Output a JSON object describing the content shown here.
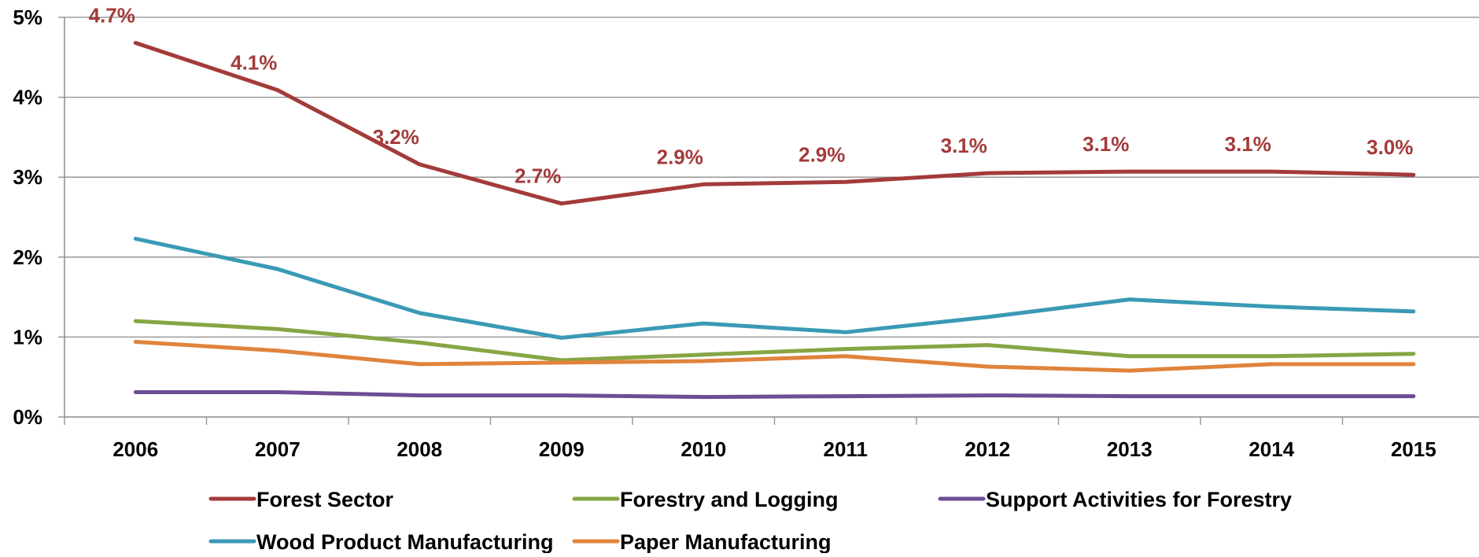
{
  "chart_data": {
    "type": "line",
    "title": "",
    "xlabel": "",
    "ylabel": "",
    "categories": [
      "2006",
      "2007",
      "2008",
      "2009",
      "2010",
      "2011",
      "2012",
      "2013",
      "2014",
      "2015"
    ],
    "ylim": [
      0,
      5
    ],
    "yticks": [
      0,
      1,
      2,
      3,
      4,
      5
    ],
    "ytick_labels": [
      "0%",
      "1%",
      "2%",
      "3%",
      "4%",
      "5%"
    ],
    "grid": "horizontal",
    "legend_position": "bottom",
    "series": [
      {
        "name": "Forest Sector",
        "color": "#A33B3A",
        "values": [
          4.68,
          4.09,
          3.16,
          2.67,
          2.91,
          2.94,
          3.05,
          3.07,
          3.07,
          3.03
        ],
        "data_labels": [
          "4.7%",
          "4.1%",
          "3.2%",
          "2.7%",
          "2.9%",
          "2.9%",
          "3.1%",
          "3.1%",
          "3.1%",
          "3.0%"
        ]
      },
      {
        "name": "Forestry and Logging",
        "color": "#86A544",
        "values": [
          1.2,
          1.1,
          0.93,
          0.71,
          0.78,
          0.85,
          0.9,
          0.76,
          0.76,
          0.79
        ]
      },
      {
        "name": "Support Activities for Forestry",
        "color": "#6E4E96",
        "values": [
          0.31,
          0.31,
          0.27,
          0.27,
          0.25,
          0.26,
          0.27,
          0.26,
          0.26,
          0.26
        ]
      },
      {
        "name": "Wood Product Manufacturing",
        "color": "#3A9AB5",
        "values": [
          2.23,
          1.85,
          1.3,
          0.99,
          1.17,
          1.06,
          1.25,
          1.47,
          1.38,
          1.32
        ]
      },
      {
        "name": "Paper Manufacturing",
        "color": "#E0833C",
        "values": [
          0.94,
          0.83,
          0.66,
          0.68,
          0.7,
          0.76,
          0.63,
          0.58,
          0.66,
          0.66
        ]
      }
    ]
  }
}
